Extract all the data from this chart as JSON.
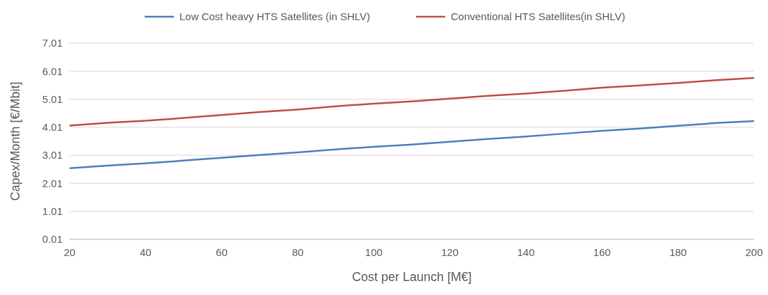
{
  "chart_data": {
    "type": "line",
    "xlabel": "Cost per Launch [M€]",
    "ylabel": "Capex/Month [€/Mbit]",
    "x": [
      20,
      30,
      40,
      50,
      60,
      70,
      80,
      90,
      100,
      110,
      120,
      130,
      140,
      150,
      160,
      170,
      180,
      190,
      200
    ],
    "series": [
      {
        "name": "Low Cost heavy HTS Satellites (in SHLV)",
        "color": "#4a7ebb",
        "values": [
          2.55,
          2.64,
          2.72,
          2.82,
          2.92,
          3.02,
          3.11,
          3.22,
          3.31,
          3.39,
          3.49,
          3.59,
          3.68,
          3.78,
          3.88,
          3.96,
          4.06,
          4.16,
          4.23
        ]
      },
      {
        "name": "Conventional HTS Satellites(in SHLV)",
        "color": "#be4b48",
        "values": [
          4.07,
          4.17,
          4.24,
          4.34,
          4.45,
          4.55,
          4.64,
          4.76,
          4.85,
          4.93,
          5.03,
          5.13,
          5.21,
          5.31,
          5.42,
          5.5,
          5.59,
          5.69,
          5.77
        ]
      }
    ],
    "xlim": [
      20,
      200
    ],
    "xticks": [
      20,
      40,
      60,
      80,
      100,
      120,
      140,
      160,
      180,
      200
    ],
    "ylim": [
      0.01,
      7.01
    ],
    "yticks": [
      0.01,
      1.01,
      2.01,
      3.01,
      4.01,
      5.01,
      6.01,
      7.01
    ],
    "grid": "y",
    "legend": "top",
    "marker": "none",
    "line_style": "solid"
  }
}
